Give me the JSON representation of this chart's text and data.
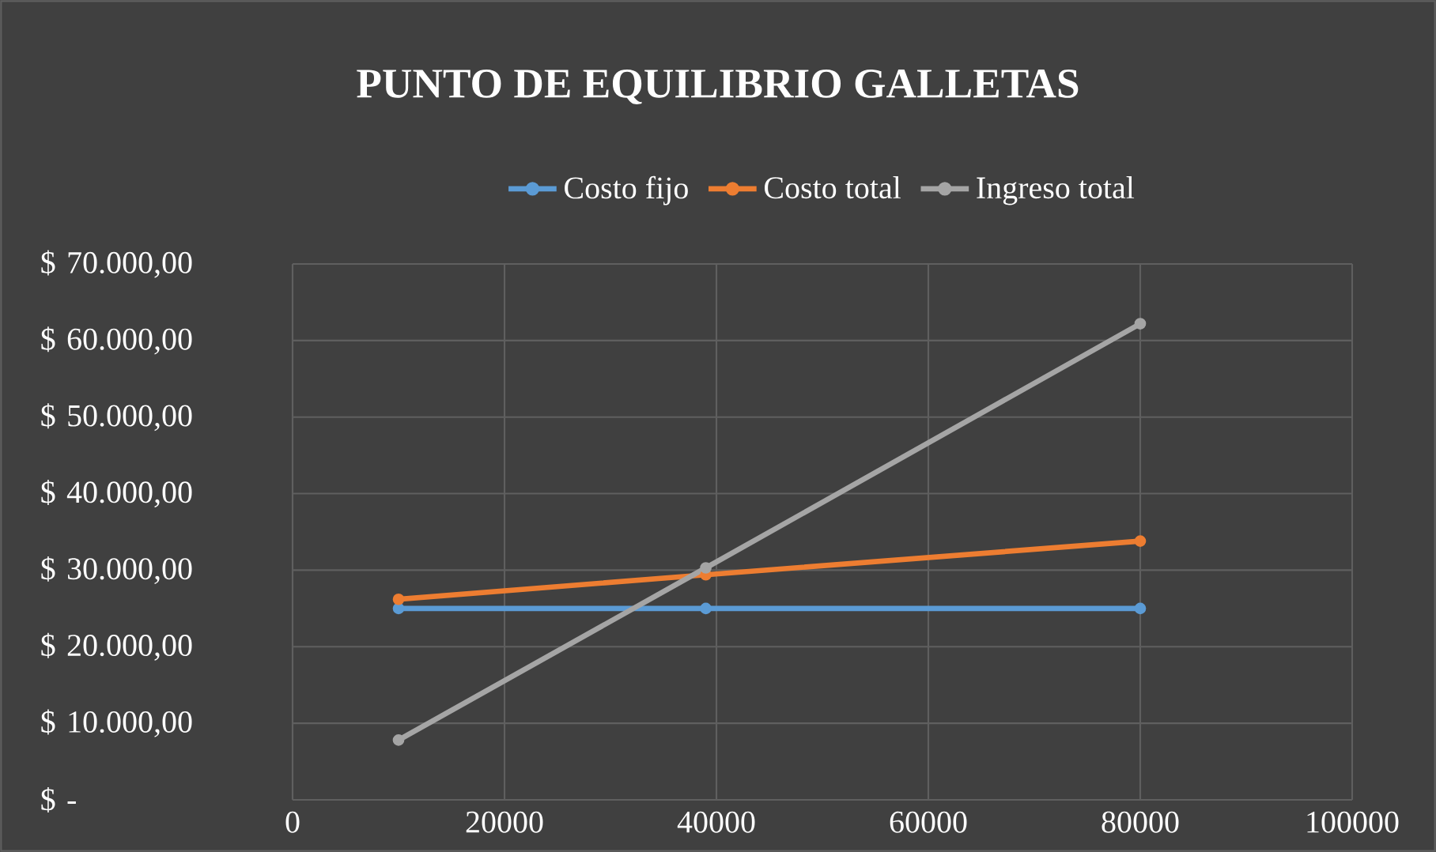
{
  "chart_data": {
    "type": "line",
    "title": "PUNTO DE EQUILIBRIO GALLETAS",
    "x": [
      10000,
      39000,
      80000
    ],
    "series": [
      {
        "name": "Costo fijo",
        "color": "#5b9bd5",
        "values": [
          25000,
          25000,
          25000
        ]
      },
      {
        "name": "Costo total",
        "color": "#ed7d31",
        "values": [
          26200,
          29400,
          33800
        ]
      },
      {
        "name": "Ingreso total",
        "color": "#a5a5a5",
        "values": [
          7800,
          30300,
          62200
        ]
      }
    ],
    "xlim": [
      0,
      100000
    ],
    "xticks": [
      0,
      20000,
      40000,
      60000,
      80000,
      100000
    ],
    "ylim": [
      0,
      70000
    ],
    "yticks": [
      {
        "value": 0,
        "label": "$ -"
      },
      {
        "value": 10000,
        "label": "$ 10.000,00"
      },
      {
        "value": 20000,
        "label": "$ 20.000,00"
      },
      {
        "value": 30000,
        "label": "$ 30.000,00"
      },
      {
        "value": 40000,
        "label": "$ 40.000,00"
      },
      {
        "value": 50000,
        "label": "$ 50.000,00"
      },
      {
        "value": 60000,
        "label": "$ 60.000,00"
      },
      {
        "value": 70000,
        "label": "$ 70.000,00"
      }
    ],
    "grid": true,
    "legend": "top",
    "marker": "circle",
    "line_style": "solid"
  }
}
